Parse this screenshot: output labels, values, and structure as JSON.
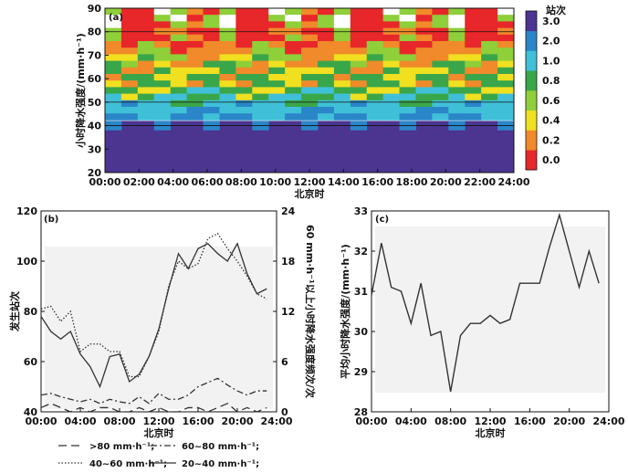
{
  "chart_data": [
    {
      "panel_label": "(a)",
      "type": "heatmap",
      "xlabel": "北京时",
      "ylabel": "小时降水强度/(mm·h⁻¹)",
      "x_ticks": [
        "00:00",
        "02:00",
        "04:00",
        "06:00",
        "08:00",
        "10:00",
        "12:00",
        "14:00",
        "16:00",
        "18:00",
        "20:00",
        "22:00",
        "24:00"
      ],
      "y_ticks": [
        "20",
        "30",
        "40",
        "50",
        "60",
        "70",
        "80",
        "90"
      ],
      "ylim": [
        20,
        90
      ],
      "colorbar": {
        "title": "站次",
        "ticks": [
          "0.0",
          "0.2",
          "0.4",
          "0.6",
          "0.8",
          "1.0",
          "2.0",
          "3.0"
        ],
        "colors": [
          "#e8272a",
          "#f08a2a",
          "#f0e020",
          "#8ecf3a",
          "#3aa64a",
          "#40c0d8",
          "#2a86c8",
          "#4b3590"
        ]
      },
      "intensity_bins": [
        90,
        88,
        86,
        84,
        82,
        80,
        78,
        76,
        74,
        72,
        70,
        68,
        66,
        64,
        62,
        60,
        58,
        56,
        54,
        52,
        50,
        48,
        46,
        44,
        42
      ],
      "bin_level_pattern": [
        "LMWRRLR",
        "RWRLRLW",
        "LRWMRRL",
        "RMRLRMR",
        "RRLRLMR",
        "MRMRLMR",
        "MLMMRLM",
        "YMLYMLG",
        "MGMYLGM",
        "YMGYGMY",
        "GYGMGYG",
        "MGYGYMG",
        "YGCGYGC",
        "GCYGCGC",
        "CGCBCGC",
        "CCBCCBC",
        "BCBBCBC",
        "PBPBBBP"
      ],
      "station_counts_40_46": [
        3,
        3,
        3,
        3,
        3,
        3,
        3,
        3,
        3,
        3,
        3,
        3,
        3,
        3,
        3,
        3,
        3,
        3,
        3,
        3,
        3,
        3,
        3,
        3,
        3
      ]
    },
    {
      "panel_label": "(b)",
      "type": "line",
      "xlabel": "北京时",
      "ylabel": "发生站次",
      "y2label": "60 mm·h⁻¹以上小时降水强度频次/次",
      "x_ticks": [
        "00:00",
        "04:00",
        "08:00",
        "12:00",
        "16:00",
        "20:00",
        "24:00"
      ],
      "y_ticks": [
        "40",
        "60",
        "80",
        "100",
        "120"
      ],
      "y2_ticks": [
        "0",
        "6",
        "12",
        "18",
        "24"
      ],
      "ylim": [
        40,
        120
      ],
      "y2lim": [
        0,
        24
      ],
      "x": [
        0,
        1,
        2,
        3,
        4,
        5,
        6,
        7,
        8,
        9,
        10,
        11,
        12,
        13,
        14,
        15,
        16,
        17,
        18,
        19,
        20,
        21,
        22,
        23
      ],
      "series": [
        {
          "name": ">80 mm·h⁻¹",
          "axis": "right",
          "style": "long-dash",
          "values": [
            0.5,
            1.0,
            0.5,
            0.0,
            0.5,
            0.0,
            0.5,
            0.5,
            0.0,
            0.0,
            0.5,
            0.0,
            0.5,
            0.0,
            0.0,
            0.5,
            0.5,
            0.0,
            0.5,
            1.0,
            0.0,
            0.5,
            0.0,
            0.5
          ]
        },
        {
          "name": "60~80 mm·h⁻¹",
          "axis": "right",
          "style": "dash-dot",
          "values": [
            2.0,
            2.2,
            1.8,
            1.5,
            1.2,
            1.5,
            1.0,
            1.5,
            1.2,
            1.0,
            1.8,
            1.0,
            2.2,
            1.5,
            1.5,
            2.0,
            3.0,
            3.5,
            4.0,
            3.2,
            2.5,
            2.0,
            2.5,
            2.5
          ]
        },
        {
          "name": "40~60 mm·h⁻¹",
          "axis": "left",
          "style": "dotted",
          "values": [
            81,
            82,
            76,
            80,
            64,
            67,
            67,
            64,
            64,
            54,
            54,
            62,
            72,
            90,
            100,
            97,
            99,
            109,
            111,
            105,
            100,
            94,
            87,
            85
          ]
        },
        {
          "name": "20~40 mm·h⁻¹",
          "axis": "left",
          "style": "solid",
          "values": [
            78,
            72,
            69,
            72,
            63,
            58,
            50,
            62,
            63,
            52,
            55,
            62,
            73,
            89,
            103,
            97,
            105,
            107,
            103,
            100,
            107,
            95,
            87,
            89
          ]
        }
      ]
    },
    {
      "panel_label": "(c)",
      "type": "line",
      "xlabel": "北京时",
      "ylabel": "平均小时降水强度/(mm·h⁻¹)",
      "x_ticks": [
        "00:00",
        "04:00",
        "08:00",
        "12:00",
        "16:00",
        "20:00",
        "24:00"
      ],
      "y_ticks": [
        "28",
        "29",
        "30",
        "31",
        "32",
        "33"
      ],
      "ylim": [
        28,
        33
      ],
      "x": [
        0,
        1,
        2,
        3,
        4,
        5,
        6,
        7,
        8,
        9,
        10,
        11,
        12,
        13,
        14,
        15,
        16,
        17,
        18,
        19,
        20,
        21,
        22,
        23
      ],
      "series": [
        {
          "values": [
            30.9,
            32.2,
            31.1,
            31.0,
            30.2,
            31.2,
            29.9,
            30.0,
            28.5,
            29.9,
            30.2,
            30.2,
            30.4,
            30.2,
            30.3,
            31.2,
            31.2,
            31.2,
            32.1,
            32.9,
            32.0,
            31.1,
            32.0,
            31.2
          ]
        }
      ]
    }
  ]
}
